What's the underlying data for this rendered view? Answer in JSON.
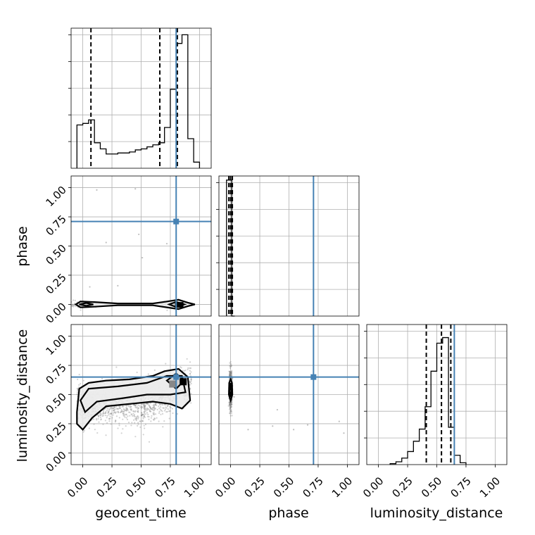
{
  "chart_data": {
    "type": "corner",
    "parameters": [
      "geocent_time",
      "phase",
      "luminosity_distance"
    ],
    "axis_range": [
      -0.1,
      1.1
    ],
    "ticks": [
      0.0,
      0.25,
      0.5,
      0.75,
      1.0
    ],
    "tick_labels": [
      "0.00",
      "0.25",
      "0.50",
      "0.75",
      "1.00"
    ],
    "grid": true,
    "truths": {
      "geocent_time": 0.8,
      "phase": 0.71,
      "luminosity_distance": 0.65
    },
    "colors": {
      "truth": "#4682b4",
      "hist": "#000000",
      "points": "#808080"
    },
    "histograms": {
      "geocent_time": {
        "bins": [
          -0.05,
          0.0,
          0.05,
          0.1,
          0.15,
          0.2,
          0.25,
          0.3,
          0.35,
          0.4,
          0.45,
          0.5,
          0.55,
          0.6,
          0.65,
          0.7,
          0.75,
          0.8,
          0.85,
          0.9,
          0.95,
          1.0
        ],
        "values": [
          0.85,
          0.88,
          0.95,
          0.5,
          0.38,
          0.28,
          0.28,
          0.3,
          0.3,
          0.32,
          0.36,
          0.38,
          0.42,
          0.46,
          0.5,
          0.8,
          1.55,
          2.45,
          2.62,
          0.58,
          0.12
        ],
        "ymax": 2.75,
        "quantiles": [
          0.07,
          0.66,
          0.81
        ]
      },
      "phase": {
        "bins": [
          -0.035,
          -0.01,
          0.01,
          0.035
        ],
        "values": [
          1.0,
          1.0,
          0.0
        ],
        "ymax": 1.03,
        "quantiles": [
          -0.015,
          0.0,
          0.015
        ]
      },
      "luminosity_distance": {
        "bins": [
          0.1,
          0.15,
          0.2,
          0.25,
          0.3,
          0.35,
          0.4,
          0.45,
          0.5,
          0.55,
          0.6,
          0.65,
          0.7,
          0.75
        ],
        "values": [
          0.01,
          0.03,
          0.07,
          0.14,
          0.25,
          0.38,
          0.62,
          1.0,
          1.3,
          1.36,
          0.4,
          0.1,
          0.02
        ],
        "ymax": 1.5,
        "quantiles": [
          0.41,
          0.54,
          0.62
        ]
      }
    }
  }
}
